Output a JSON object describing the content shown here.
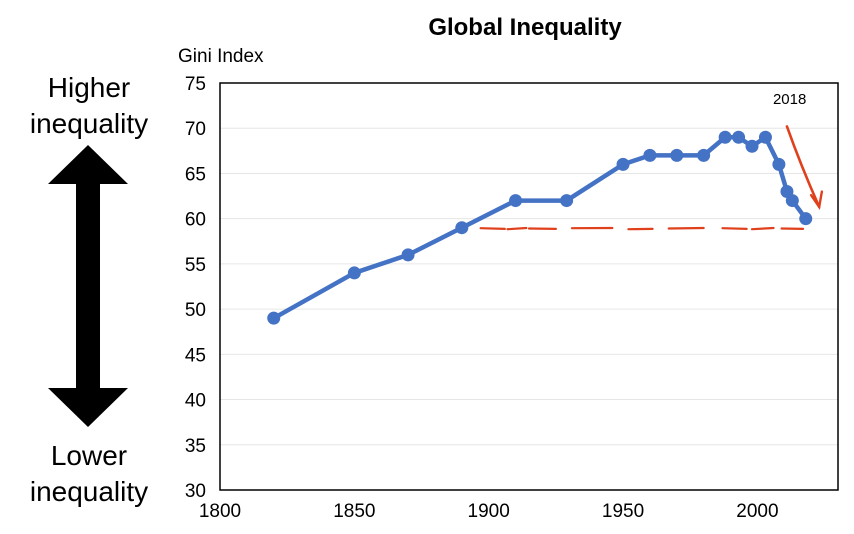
{
  "chart_data": {
    "type": "line",
    "title": "Global Inequality",
    "ylabel": "Gini Index",
    "xlabel": "",
    "xlim": [
      1800,
      2030
    ],
    "ylim": [
      30,
      75
    ],
    "x_ticks": [
      1800,
      1850,
      1900,
      1950,
      2000
    ],
    "y_ticks": [
      30,
      35,
      40,
      45,
      50,
      55,
      60,
      65,
      70,
      75
    ],
    "grid": "horizontal",
    "series": [
      {
        "color": "#4472C4",
        "x": [
          1820,
          1850,
          1870,
          1890,
          1910,
          1929,
          1950,
          1960,
          1970,
          1980,
          1988,
          1993,
          1998,
          2003,
          2008,
          2011,
          2013,
          2018
        ],
        "y": [
          49,
          54,
          56,
          59,
          62,
          62,
          66,
          67,
          67,
          67,
          69,
          69,
          68,
          69,
          66,
          63,
          62,
          60
        ]
      }
    ],
    "annotations": {
      "year_label": "2018",
      "annotation_color": "#E0401C",
      "dashed_reference_level": 59
    },
    "side_labels": {
      "higher": "Higher inequality",
      "lower": "Lower inequality"
    }
  }
}
